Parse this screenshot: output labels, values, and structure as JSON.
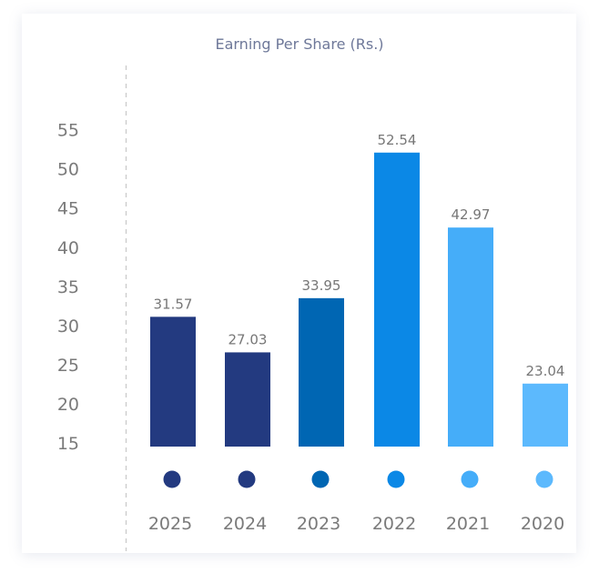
{
  "chart_data": {
    "type": "bar",
    "title": "Earning Per Share (Rs.)",
    "xlabel": "",
    "ylabel": "",
    "categories": [
      "2025",
      "2024",
      "2023",
      "2022",
      "2021",
      "2020"
    ],
    "values": [
      31.57,
      27.03,
      33.95,
      52.54,
      42.97,
      23.04
    ],
    "value_labels": [
      "31.57",
      "27.03",
      "33.95",
      "52.54",
      "42.97",
      "23.04"
    ],
    "colors": [
      "#233a80",
      "#233a80",
      "#0066b3",
      "#0b88e6",
      "#45adf9",
      "#5cb9fd"
    ],
    "yticks": [
      15,
      20,
      25,
      30,
      35,
      40,
      45,
      50,
      55
    ],
    "ylim": [
      15,
      57
    ],
    "grid": false,
    "legend": "none"
  }
}
